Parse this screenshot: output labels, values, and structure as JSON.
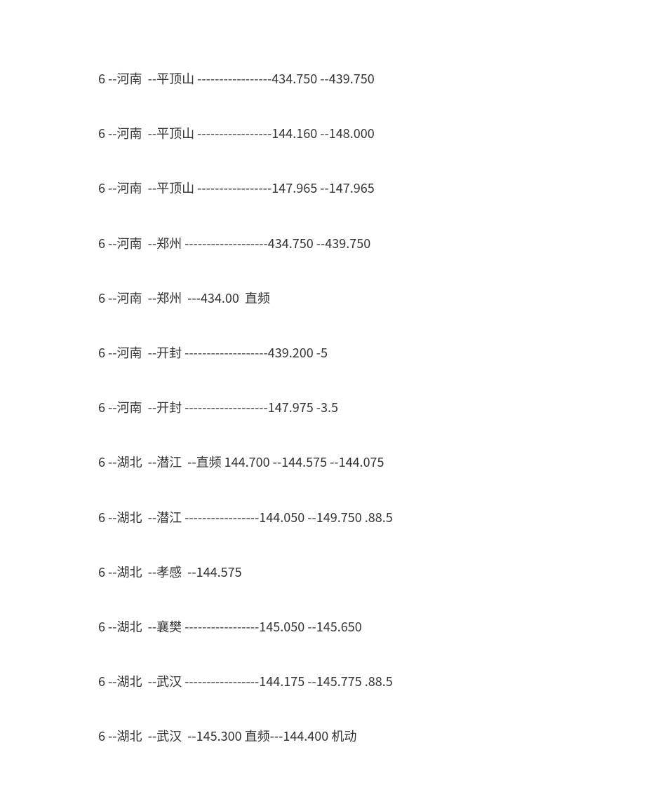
{
  "rows": [
    "6 --河南  --平顶山 -----------------434.750 --439.750",
    "6 --河南  --平顶山 -----------------144.160 --148.000",
    "6 --河南  --平顶山 -----------------147.965 --147.965",
    "6 --河南  --郑州 -------------------434.750 --439.750",
    "6 --河南  --郑州  ---434.00  直频",
    "6 --河南  --开封 -------------------439.200 -5",
    "6 --河南  --开封 -------------------147.975 -3.5",
    "6 --湖北  --潜江  --直频 144.700 --144.575 --144.075",
    "6 --湖北  --潜江 -----------------144.050 --149.750 .88.5",
    "6 --湖北  --孝感  --144.575",
    "6 --湖北  --襄樊 -----------------145.050 --145.650",
    "6 --湖北  --武汉 -----------------144.175 --145.775 .88.5",
    "6 --湖北  --武汉  --145.300 直频---144.400 机动"
  ],
  "text_color": "#333333",
  "background_color": "#ffffff",
  "font_size": 18
}
